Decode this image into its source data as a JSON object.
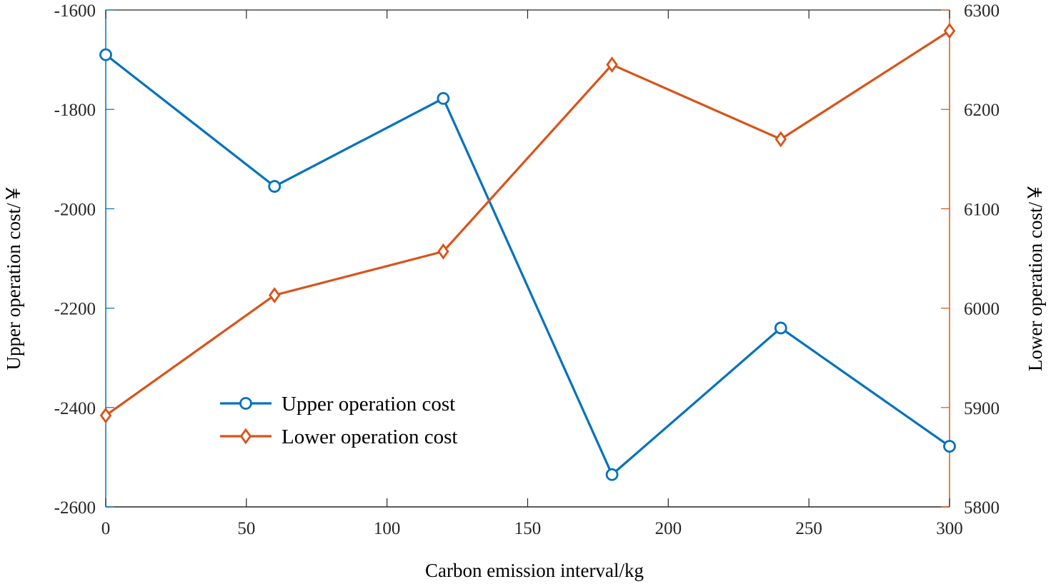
{
  "chart_data": {
    "type": "line",
    "title": "",
    "xlabel": "Carbon emission interval/kg",
    "ylabel_left": "Upper operation cost/￥",
    "ylabel_right": "Lower operation cost/￥",
    "x": [
      0,
      60,
      120,
      180,
      240,
      300
    ],
    "xlim": [
      0,
      300
    ],
    "xticks": [
      0,
      50,
      100,
      150,
      200,
      250,
      300
    ],
    "ylim_left": [
      -2600,
      -1600
    ],
    "yticks_left": [
      -2600,
      -2400,
      -2200,
      -2000,
      -1800,
      -1600
    ],
    "ylim_right": [
      5800,
      6300
    ],
    "yticks_right": [
      5800,
      5900,
      6000,
      6100,
      6200,
      6300
    ],
    "grid": false,
    "legend_position": "lower-left",
    "series": [
      {
        "name": "Upper operation cost",
        "axis": "left",
        "marker": "circle",
        "color": "#0072BD",
        "values": [
          -1690,
          -1955,
          -1778,
          -2535,
          -2240,
          -2478
        ]
      },
      {
        "name": "Lower operation cost",
        "axis": "right",
        "marker": "diamond",
        "color": "#D95319",
        "values": [
          5892,
          6013,
          6057,
          6245,
          6170,
          6279
        ]
      }
    ]
  }
}
